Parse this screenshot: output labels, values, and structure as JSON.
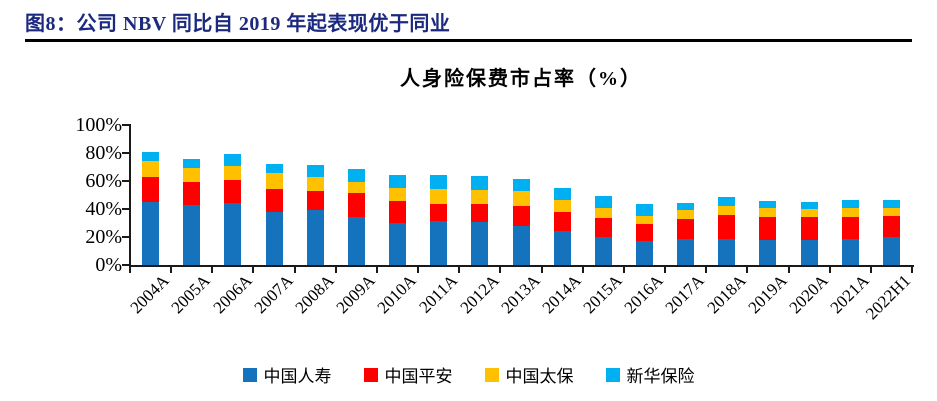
{
  "figure": {
    "title": "图8：公司 NBV 同比自 2019 年起表现优于同业",
    "title_color": "#1b2a7e"
  },
  "chart_data": {
    "type": "bar",
    "stacked": true,
    "title": "人身险保费市占率（%）",
    "categories": [
      "2004A",
      "2005A",
      "2006A",
      "2007A",
      "2008A",
      "2009A",
      "2010A",
      "2011A",
      "2012A",
      "2013A",
      "2014A",
      "2015A",
      "2016A",
      "2017A",
      "2018A",
      "2019A",
      "2020A",
      "2021A",
      "2022H1"
    ],
    "series": [
      {
        "name": "中国人寿",
        "color": "#1572BD",
        "values": [
          45,
          43,
          44,
          38,
          39,
          34.5,
          30,
          31.5,
          31,
          28,
          24,
          20,
          17,
          18.5,
          18.5,
          18,
          18,
          18.5,
          20
        ]
      },
      {
        "name": "中国平安",
        "color": "#FE0000",
        "values": [
          18,
          16,
          17,
          16,
          14,
          17,
          15.5,
          12,
          12.5,
          14,
          13.5,
          13.5,
          12,
          14.5,
          17.5,
          16,
          16,
          16,
          15
        ]
      },
      {
        "name": "中国太保",
        "color": "#FFC000",
        "values": [
          11,
          10,
          10,
          11.5,
          9.5,
          8,
          9.5,
          10.5,
          10,
          10.5,
          9,
          7,
          6,
          6,
          6,
          6.5,
          6,
          6.5,
          6
        ]
      },
      {
        "name": "新华保险",
        "color": "#00B0F0",
        "values": [
          7,
          6.5,
          8,
          7,
          9,
          9,
          9,
          10,
          10,
          9,
          8.5,
          9,
          8.5,
          5,
          6.5,
          5.5,
          5,
          5.5,
          5.5
        ]
      }
    ],
    "xlabel": "",
    "ylabel": "",
    "ylim": [
      0,
      100
    ],
    "ytick_values": [
      0,
      20,
      40,
      60,
      80,
      100
    ],
    "ytick_labels": [
      "0%",
      "20%",
      "40%",
      "60%",
      "80%",
      "100%"
    ],
    "grid": false,
    "legend_position": "bottom"
  }
}
